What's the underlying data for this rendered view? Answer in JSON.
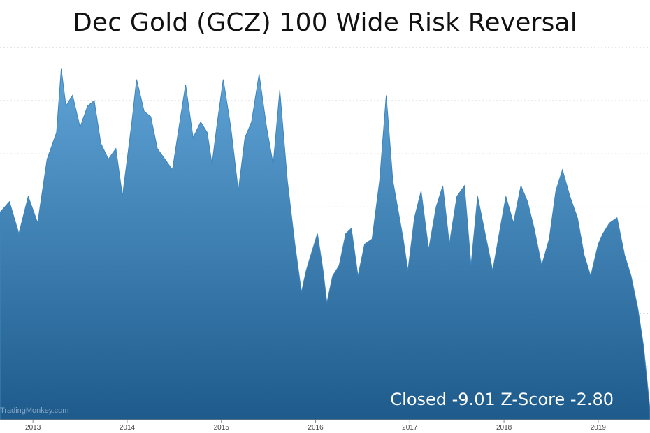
{
  "chart_data": {
    "type": "area",
    "title": "Dec Gold (GCZ) 100 Wide Risk Reversal",
    "annotation": "Closed -9.01 Z-Score -2.80",
    "watermark": "TradingMonkey.com",
    "xlabel": "",
    "ylabel": "",
    "x_ticks": [
      "2013",
      "2014",
      "2015",
      "2016",
      "2017",
      "2018",
      "2019"
    ],
    "xlim": [
      2012.65,
      2019.55
    ],
    "ylim": [
      -10,
      25
    ],
    "grid": true,
    "series_color": "#3d85be",
    "series_color_dark": "#1e5b8c",
    "x": [
      2012.65,
      2012.75,
      2012.85,
      2012.95,
      2013.05,
      2013.15,
      2013.25,
      2013.3,
      2013.35,
      2013.42,
      2013.5,
      2013.58,
      2013.65,
      2013.72,
      2013.8,
      2013.88,
      2013.95,
      2014.0,
      2014.05,
      2014.1,
      2014.18,
      2014.25,
      2014.32,
      2014.4,
      2014.48,
      2014.55,
      2014.62,
      2014.7,
      2014.78,
      2014.85,
      2014.9,
      2014.95,
      2015.02,
      2015.1,
      2015.18,
      2015.25,
      2015.32,
      2015.4,
      2015.48,
      2015.55,
      2015.62,
      2015.7,
      2015.78,
      2015.85,
      2015.9,
      2015.95,
      2016.02,
      2016.08,
      2016.12,
      2016.18,
      2016.25,
      2016.32,
      2016.38,
      2016.45,
      2016.52,
      2016.6,
      2016.68,
      2016.75,
      2016.82,
      2016.88,
      2016.93,
      2016.98,
      2017.05,
      2017.12,
      2017.2,
      2017.28,
      2017.35,
      2017.42,
      2017.5,
      2017.58,
      2017.65,
      2017.72,
      2017.8,
      2017.88,
      2017.95,
      2018.02,
      2018.1,
      2018.18,
      2018.25,
      2018.32,
      2018.4,
      2018.48,
      2018.55,
      2018.62,
      2018.7,
      2018.78,
      2018.85,
      2018.92,
      2019.0,
      2019.05,
      2019.12,
      2019.2,
      2019.28,
      2019.35,
      2019.42,
      2019.48,
      2019.55
    ],
    "values": [
      9.5,
      10.5,
      7.5,
      11.0,
      8.5,
      14.5,
      17.0,
      23.0,
      19.5,
      20.5,
      17.5,
      19.5,
      20.0,
      16.0,
      14.5,
      15.5,
      11.0,
      14.5,
      18.0,
      22.0,
      19.0,
      18.5,
      15.5,
      14.5,
      13.5,
      17.5,
      21.5,
      16.5,
      18.0,
      17.0,
      14.0,
      17.5,
      22.0,
      17.5,
      11.5,
      16.5,
      18.0,
      22.5,
      17.5,
      14.0,
      21.0,
      12.5,
      6.5,
      2.0,
      4.0,
      5.5,
      7.5,
      4.0,
      1.0,
      3.5,
      4.5,
      7.5,
      8.0,
      3.5,
      6.5,
      7.0,
      12.5,
      20.5,
      12.5,
      9.5,
      7.0,
      4.0,
      9.0,
      11.5,
      6.0,
      10.0,
      12.0,
      6.5,
      11.0,
      12.0,
      4.5,
      11.0,
      7.5,
      4.0,
      7.5,
      11.0,
      8.5,
      12.0,
      10.5,
      8.0,
      4.5,
      7.0,
      11.5,
      13.5,
      11.0,
      9.0,
      5.5,
      3.5,
      6.5,
      7.5,
      8.5,
      9.0,
      5.5,
      3.5,
      0.5,
      -3.0,
      -9.0
    ]
  }
}
